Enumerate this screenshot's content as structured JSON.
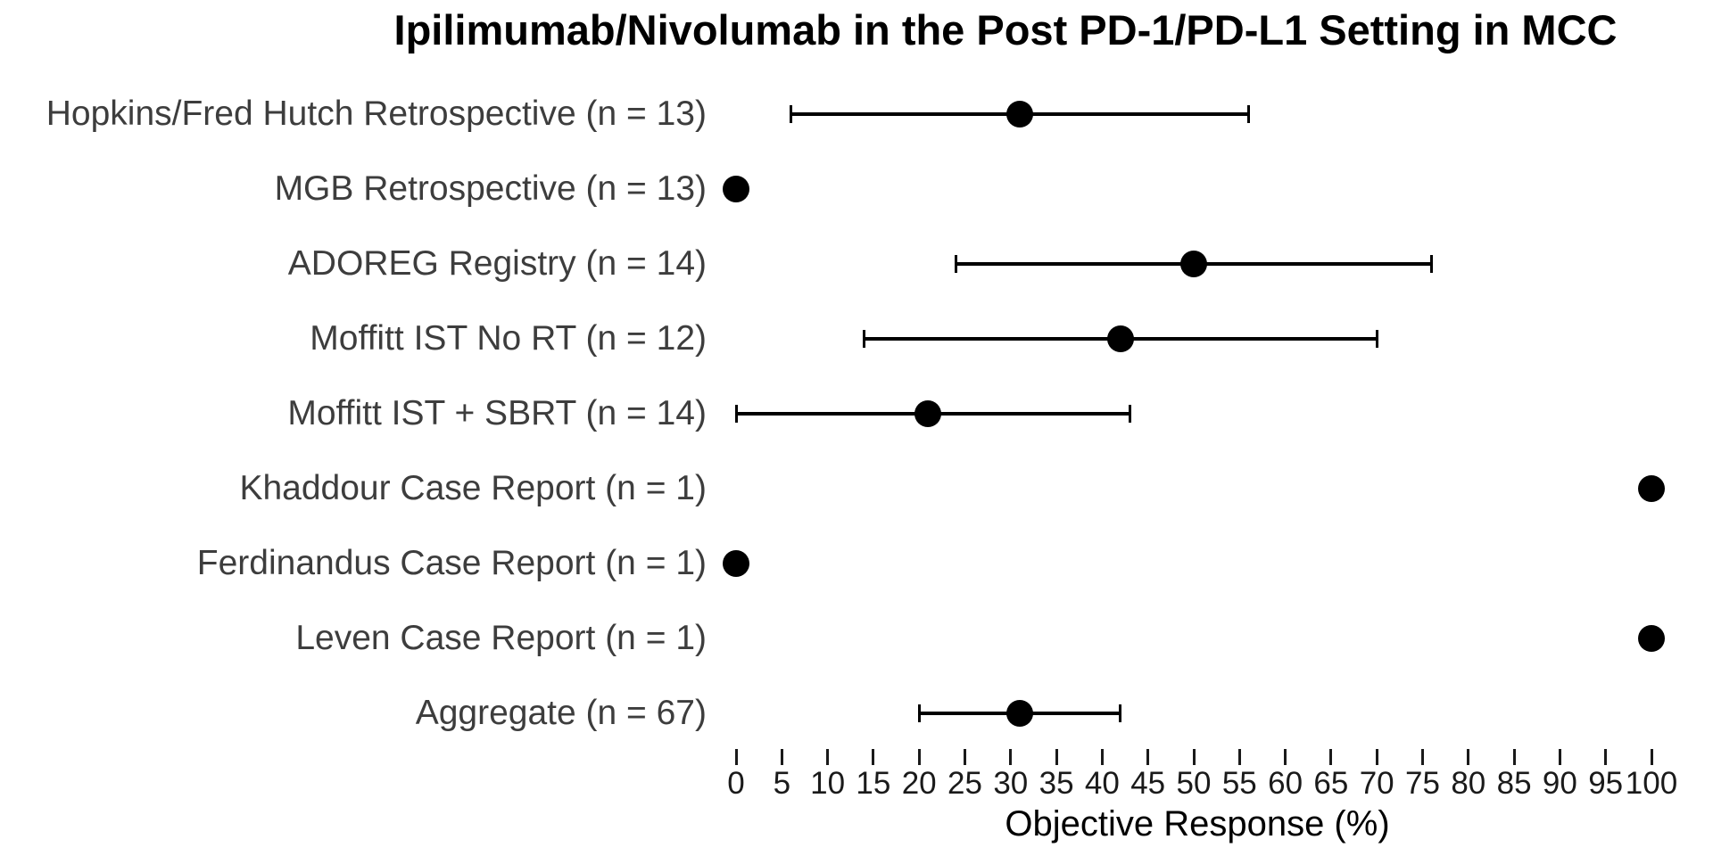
{
  "title": "Ipilimumab/Nivolumab in the Post PD-1/PD-L1 Setting in MCC",
  "colors": {
    "marker": "#000000",
    "error_bar": "#000000",
    "study_label_text": "#3d3d3d",
    "tick_text": "#1a1a1a",
    "title_text": "#000000",
    "background": "#ffffff"
  },
  "chart_data": {
    "type": "scatter",
    "subtype": "forest-plot",
    "title": "Ipilimumab/Nivolumab in the Post PD-1/PD-L1 Setting in MCC",
    "xlabel": "Objective Response (%)",
    "ylabel": "",
    "xlim": [
      0,
      100
    ],
    "xticks": [
      0,
      5,
      10,
      15,
      20,
      25,
      30,
      35,
      40,
      45,
      50,
      55,
      60,
      65,
      70,
      75,
      80,
      85,
      90,
      95,
      100
    ],
    "grid": false,
    "legend": "none",
    "studies": [
      {
        "label": "Hopkins/Fred Hutch Retrospective (n = 13)",
        "value": 31,
        "ci_low": 6,
        "ci_high": 56
      },
      {
        "label": "MGB Retrospective (n = 13)",
        "value": 0,
        "ci_low": null,
        "ci_high": null
      },
      {
        "label": "ADOREG Registry (n = 14)",
        "value": 50,
        "ci_low": 24,
        "ci_high": 76
      },
      {
        "label": "Moffitt IST No RT (n = 12)",
        "value": 42,
        "ci_low": 14,
        "ci_high": 70
      },
      {
        "label": "Moffitt IST + SBRT (n = 14)",
        "value": 21,
        "ci_low": 0,
        "ci_high": 43
      },
      {
        "label": "Khaddour Case Report (n = 1)",
        "value": 100,
        "ci_low": null,
        "ci_high": null
      },
      {
        "label": "Ferdinandus Case Report (n = 1)",
        "value": 0,
        "ci_low": null,
        "ci_high": null
      },
      {
        "label": "Leven Case Report (n = 1)",
        "value": 100,
        "ci_low": null,
        "ci_high": null
      },
      {
        "label": "Aggregate (n = 67)",
        "value": 31,
        "ci_low": 20,
        "ci_high": 42
      }
    ]
  }
}
